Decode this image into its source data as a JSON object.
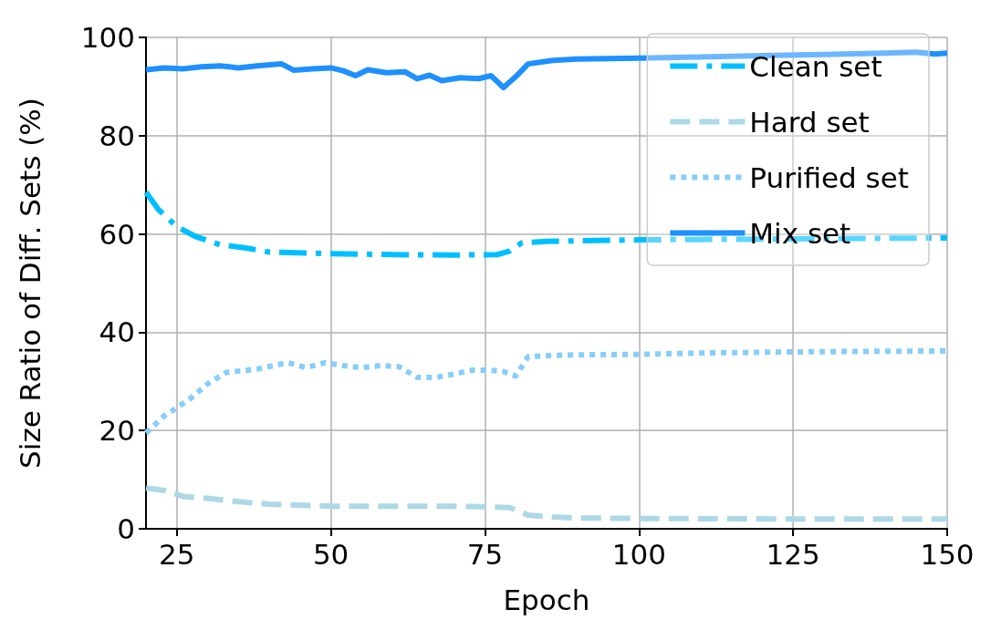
{
  "chart_data": {
    "type": "line",
    "xlabel": "Epoch",
    "ylabel": "Size Ratio of Diff. Sets (%)",
    "xlim": [
      20,
      150
    ],
    "xticks": [
      25,
      50,
      75,
      100,
      125,
      150
    ],
    "ylim": [
      0,
      100
    ],
    "yticks": [
      0,
      20,
      40,
      60,
      80,
      100
    ],
    "grid": true,
    "legend": "top right",
    "marker": "none",
    "series": [
      {
        "name": "Clean set",
        "color": "#00bfff",
        "line_style": "dashdot",
        "x": [
          20,
          22,
          25,
          28,
          32,
          36,
          40,
          50,
          60,
          70,
          77,
          79,
          81,
          85,
          100,
          125,
          150
        ],
        "values": [
          68.5,
          65,
          61.5,
          59.5,
          57.8,
          57.2,
          56.3,
          56.0,
          55.8,
          55.7,
          55.8,
          56.5,
          58.2,
          58.5,
          58.8,
          59.0,
          59.2
        ]
      },
      {
        "name": "Hard set",
        "color": "#add8e6",
        "line_style": "dashed",
        "x": [
          20,
          23,
          26,
          30,
          35,
          40,
          50,
          60,
          70,
          75,
          79,
          82,
          86,
          90,
          100,
          125,
          150
        ],
        "values": [
          8.3,
          7.8,
          6.6,
          6.2,
          5.5,
          5.0,
          4.6,
          4.6,
          4.6,
          4.5,
          4.3,
          2.8,
          2.4,
          2.2,
          2.1,
          2.0,
          2.0
        ]
      },
      {
        "name": "Purified set",
        "color": "#87cefa",
        "line_style": "dotted",
        "x": [
          20,
          23,
          27,
          30,
          33,
          38,
          43,
          46,
          49,
          52,
          55,
          58,
          61,
          64,
          67,
          70,
          73,
          76,
          78,
          80,
          82,
          86,
          90,
          100,
          112,
          125,
          137,
          150
        ],
        "values": [
          19.5,
          23,
          26.3,
          29.5,
          31.8,
          32.5,
          33.8,
          32.8,
          33.8,
          33.2,
          32.8,
          33.2,
          33,
          30.8,
          30.8,
          31.5,
          32.3,
          32.3,
          32.0,
          31.1,
          35.0,
          35.3,
          35.4,
          35.5,
          35.8,
          36.0,
          36.1,
          36.2
        ]
      },
      {
        "name": "Mix set",
        "color": "#1e90ff",
        "line_style": "solid",
        "x": [
          20,
          23,
          26,
          29,
          32,
          35,
          38,
          42,
          44,
          47,
          50,
          52,
          54,
          56,
          59,
          62,
          64,
          66,
          68,
          71,
          74,
          76,
          78,
          80,
          82,
          86,
          90,
          100,
          110,
          120,
          130,
          140,
          145,
          148,
          150
        ],
        "values": [
          93.4,
          93.8,
          93.6,
          94.0,
          94.2,
          93.8,
          94.2,
          94.6,
          93.3,
          93.6,
          93.8,
          93.2,
          92.2,
          93.4,
          92.8,
          93.0,
          91.6,
          92.3,
          91.2,
          91.8,
          91.6,
          92.2,
          89.8,
          92.0,
          94.6,
          95.3,
          95.6,
          95.8,
          96.0,
          96.3,
          96.5,
          96.8,
          97.0,
          96.6,
          96.8
        ]
      }
    ]
  }
}
